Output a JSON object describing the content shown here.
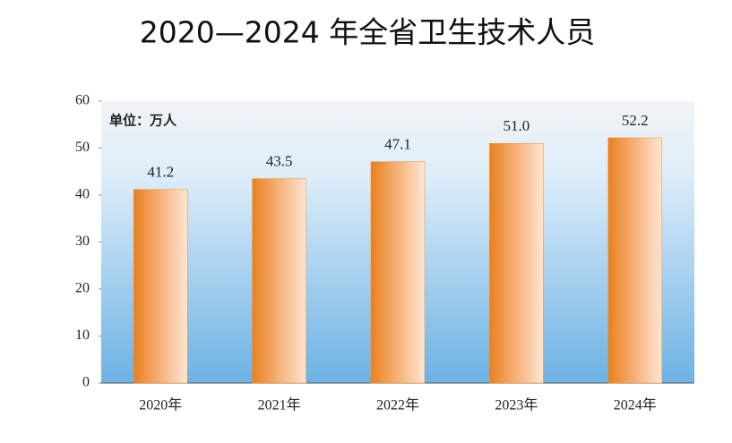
{
  "chart_data": {
    "type": "bar",
    "title": "2020—2024 年全省卫生技术人员",
    "unit": "单位：万人",
    "categories": [
      "2020年",
      "2021年",
      "2022年",
      "2023年",
      "2024年"
    ],
    "values": [
      41.2,
      43.5,
      47.1,
      51.0,
      52.2
    ],
    "value_labels": [
      "41.2",
      "43.5",
      "47.1",
      "51.0",
      "52.2"
    ],
    "color": "#ee8a2c",
    "ylim": [
      0,
      60
    ],
    "yticks": [
      0,
      10,
      20,
      30,
      40,
      50,
      60
    ]
  }
}
